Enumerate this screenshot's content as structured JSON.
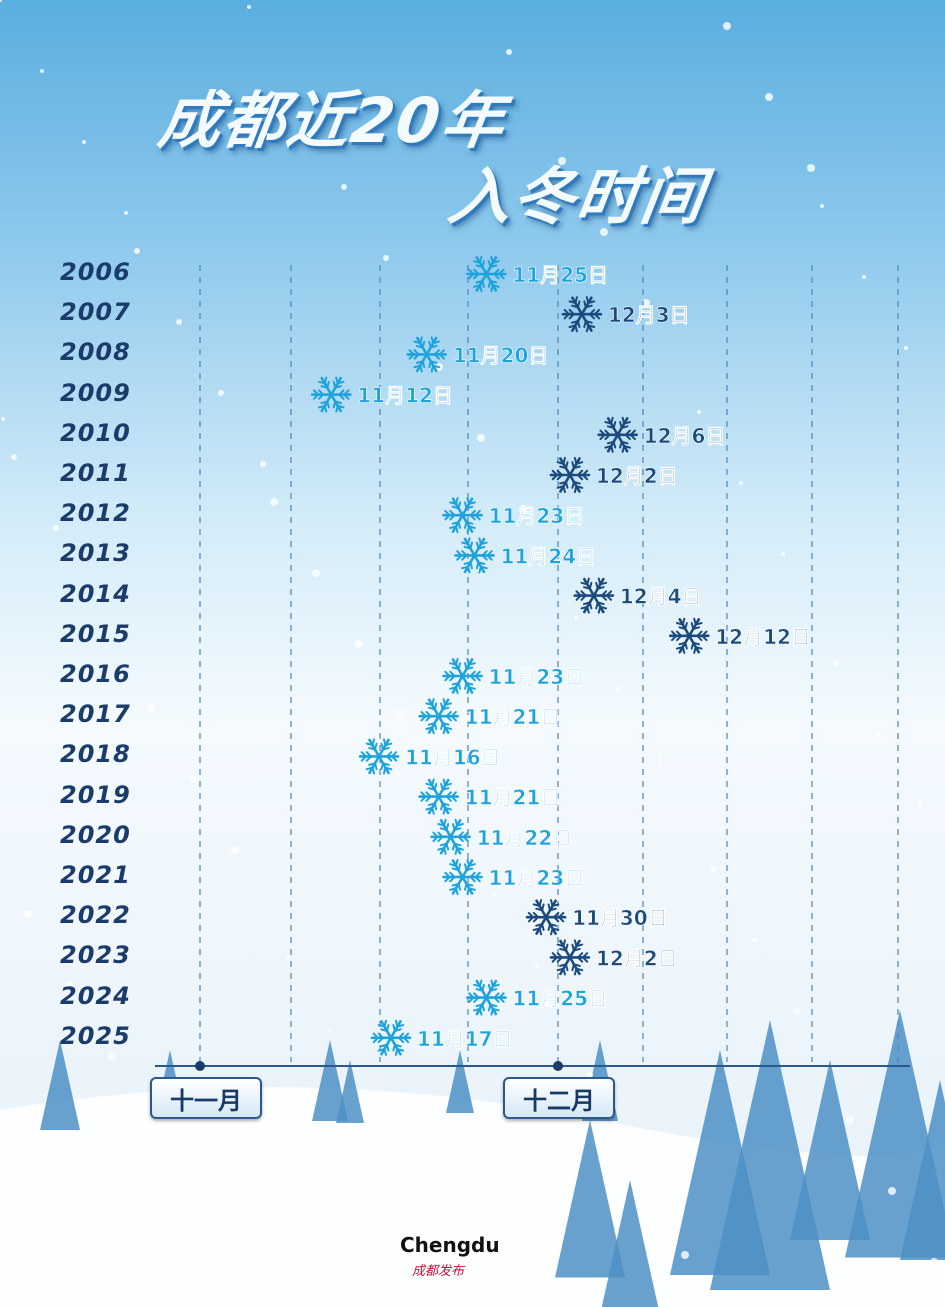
{
  "chart_data": {
    "type": "scatter",
    "title": "成都近20年入冬时间",
    "title_line1": "成都近20年",
    "title_line2": "入冬时间",
    "x_tick_labels": [
      "十一月",
      "十二月"
    ],
    "colors": {
      "november": "#1ea3dc",
      "december": "#1b4a7c"
    },
    "points": [
      {
        "year": "2006",
        "date": "11-25",
        "label": "11月25日"
      },
      {
        "year": "2007",
        "date": "12-03",
        "label": "12月3日"
      },
      {
        "year": "2008",
        "date": "11-20",
        "label": "11月20日"
      },
      {
        "year": "2009",
        "date": "11-12",
        "label": "11月12日"
      },
      {
        "year": "2010",
        "date": "12-06",
        "label": "12月6日"
      },
      {
        "year": "2011",
        "date": "12-02",
        "label": "12月2日"
      },
      {
        "year": "2012",
        "date": "11-23",
        "label": "11月23日"
      },
      {
        "year": "2013",
        "date": "11-24",
        "label": "11月24日"
      },
      {
        "year": "2014",
        "date": "12-04",
        "label": "12月4日"
      },
      {
        "year": "2015",
        "date": "12-12",
        "label": "12月12日"
      },
      {
        "year": "2016",
        "date": "11-23",
        "label": "11月23日"
      },
      {
        "year": "2017",
        "date": "11-21",
        "label": "11月21日"
      },
      {
        "year": "2018",
        "date": "11-16",
        "label": "11月16日"
      },
      {
        "year": "2019",
        "date": "11-21",
        "label": "11月21日"
      },
      {
        "year": "2020",
        "date": "11-22",
        "label": "11月22日"
      },
      {
        "year": "2021",
        "date": "11-23",
        "label": "11月23日"
      },
      {
        "year": "2022",
        "date": "11-30",
        "label": "11月30日"
      },
      {
        "year": "2023",
        "date": "12-02",
        "label": "12月2日"
      },
      {
        "year": "2024",
        "date": "11-25",
        "label": "11月25日"
      },
      {
        "year": "2025",
        "date": "11-17",
        "label": "11月17日"
      }
    ]
  },
  "logo": {
    "text": "Chengdu",
    "subtext": "成都发布"
  }
}
